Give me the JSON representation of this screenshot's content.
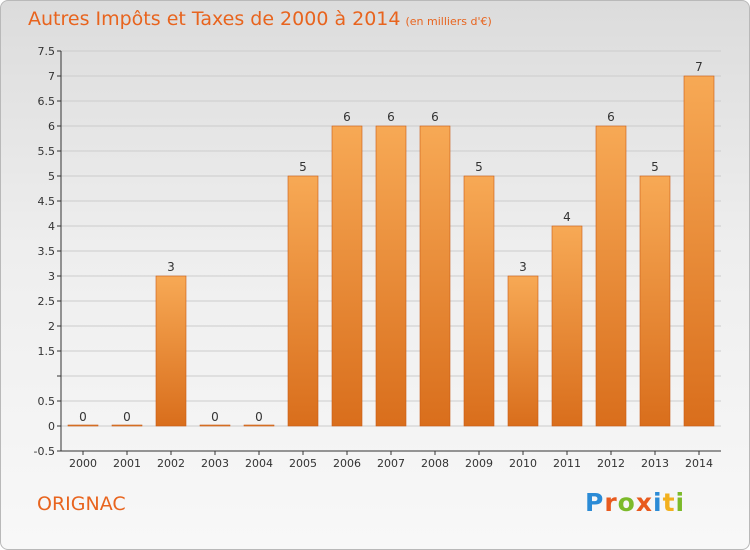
{
  "header": {
    "title": "Autres Impôts et Taxes de 2000 à 2014",
    "unit": "(en milliers d'€)"
  },
  "footer": {
    "town": "ORIGNAC",
    "logo_text": "Proxiti",
    "logo_colors": [
      "#2b8bd6",
      "#e85a1e",
      "#7cba2a",
      "#e85a1e",
      "#2b8bd6",
      "#f2b01e",
      "#7cba2a"
    ]
  },
  "colors": {
    "accent": "#e8641e",
    "bar_top": "#f7a955",
    "bar_bottom": "#d96e1c",
    "bar_stroke": "#c95a15",
    "grid": "#cccccc"
  },
  "chart_data": {
    "type": "bar",
    "title": "Autres Impôts et Taxes de 2000 à 2014",
    "subtitle": "(en milliers d'€)",
    "categories": [
      "2000",
      "2001",
      "2002",
      "2003",
      "2004",
      "2005",
      "2006",
      "2007",
      "2008",
      "2009",
      "2010",
      "2011",
      "2012",
      "2013",
      "2014"
    ],
    "values": [
      0,
      0,
      3,
      0,
      0,
      5,
      6,
      6,
      6,
      5,
      3,
      4,
      6,
      5,
      7
    ],
    "value_labels": [
      "0",
      "0",
      "3",
      "0",
      "0",
      "5",
      "6",
      "6",
      "6",
      "5",
      "3",
      "4",
      "6",
      "5",
      "7"
    ],
    "ylim": [
      -0.5,
      7.5
    ],
    "yticks": [
      -0.5,
      0,
      0.5,
      1,
      1.5,
      2,
      2.5,
      3,
      3.5,
      4,
      4.5,
      5,
      5.5,
      6,
      6.5,
      7,
      7.5
    ],
    "ytick_labels": [
      "-0.5",
      "0",
      "0.5",
      "",
      "1.5",
      "2",
      "2.5",
      "3",
      "3.5",
      "4",
      "4.5",
      "5",
      "5.5",
      "6",
      "6.5",
      "7",
      "7.5"
    ],
    "grid": true,
    "xlabel": "",
    "ylabel": ""
  }
}
